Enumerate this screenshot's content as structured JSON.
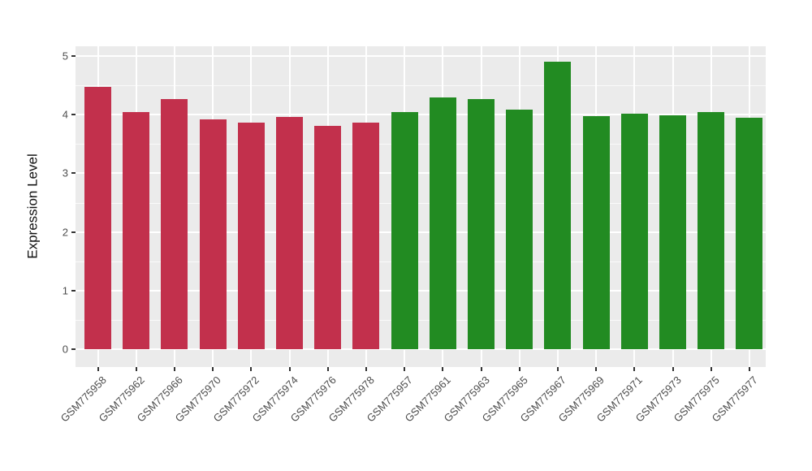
{
  "figure": {
    "background_color": "#FFFFFF",
    "panel_background_color": "#EBEBEB",
    "gridline_color": "#FFFFFF",
    "tick_mark_color": "#333333",
    "tick_label_color": "#4D4D4D",
    "group1_bar_color": "#C2304C",
    "group2_bar_color": "#228B22"
  },
  "chart_data": {
    "type": "bar",
    "title": "",
    "xlabel": "",
    "ylabel": "Expression Level",
    "ylim": [
      0,
      5
    ],
    "yticks": [
      0,
      1,
      2,
      3,
      4,
      5
    ],
    "grid": "major and minor horizontal white gridlines plus vertical white gridlines at category centers on gray panel; no legend",
    "legend_position": "none",
    "categories": [
      "GSM775958",
      "GSM775962",
      "GSM775966",
      "GSM775970",
      "GSM775972",
      "GSM775974",
      "GSM775976",
      "GSM775978",
      "GSM775957",
      "GSM775961",
      "GSM775963",
      "GSM775965",
      "GSM775967",
      "GSM775969",
      "GSM775971",
      "GSM775973",
      "GSM775975",
      "GSM775977"
    ],
    "values": [
      4.47,
      4.05,
      4.26,
      3.92,
      3.86,
      3.96,
      3.81,
      3.86,
      4.04,
      4.3,
      4.26,
      4.09,
      4.9,
      3.97,
      4.01,
      3.99,
      4.05,
      3.95
    ],
    "bar_colors": [
      "#C2304C",
      "#C2304C",
      "#C2304C",
      "#C2304C",
      "#C2304C",
      "#C2304C",
      "#C2304C",
      "#C2304C",
      "#228B22",
      "#228B22",
      "#228B22",
      "#228B22",
      "#228B22",
      "#228B22",
      "#228B22",
      "#228B22",
      "#228B22",
      "#228B22"
    ]
  }
}
